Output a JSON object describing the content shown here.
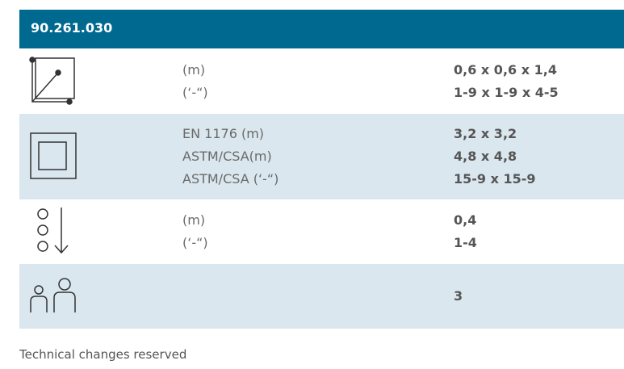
{
  "header": {
    "title": "90.261.030"
  },
  "rows": [
    {
      "labels": [
        "(m)",
        "(‘-“)"
      ],
      "values": [
        "0,6 x 0,6 x 1,4",
        "1-9 x 1-9 x 4-5"
      ]
    },
    {
      "labels": [
        "EN 1176 (m)",
        "ASTM/CSA(m)",
        "ASTM/CSA (‘-“)"
      ],
      "values": [
        "3,2 x 3,2",
        "4,8 x 4,8",
        "15-9 x 15-9"
      ]
    },
    {
      "labels": [
        "(m)",
        "(‘-“)"
      ],
      "values": [
        "0,4",
        "1-4"
      ]
    },
    {
      "labels": [],
      "values": [
        "3"
      ]
    }
  ],
  "footer": "Technical changes reserved"
}
